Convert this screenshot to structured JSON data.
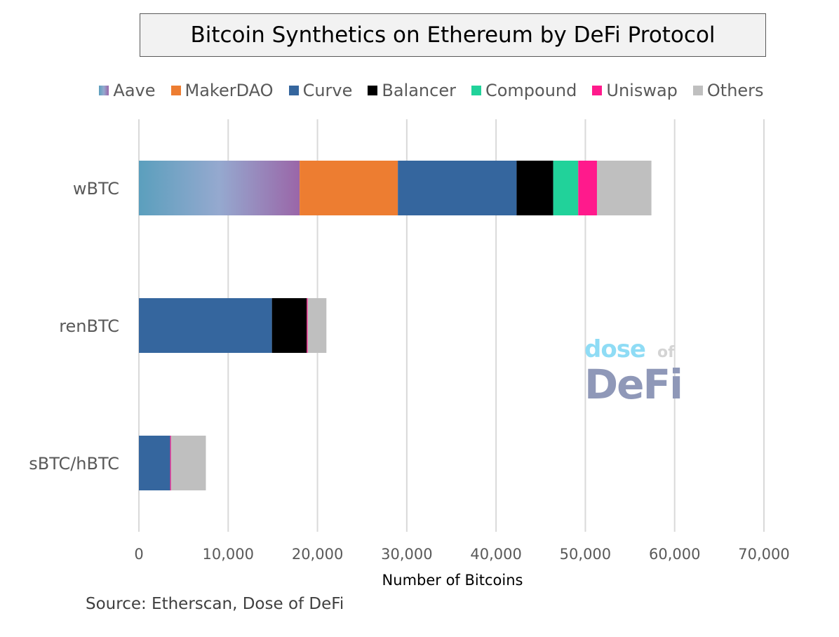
{
  "chart_data": {
    "type": "bar",
    "orientation": "horizontal",
    "stacked": true,
    "title": "Bitcoin Synthetics on Ethereum by DeFi Protocol",
    "xlabel": "Number of Bitcoins",
    "ylabel": "",
    "xlim": [
      0,
      70000
    ],
    "x_ticks": [
      0,
      10000,
      20000,
      30000,
      40000,
      50000,
      60000,
      70000
    ],
    "x_tick_labels": [
      "0",
      "10,000",
      "20,000",
      "30,000",
      "40,000",
      "50,000",
      "60,000",
      "70,000"
    ],
    "grid": "vertical",
    "legend_position": "top",
    "categories": [
      "wBTC",
      "renBTC",
      "sBTC/hBTC"
    ],
    "series": [
      {
        "name": "Aave",
        "color": "#6aa3c2",
        "values": [
          18000,
          0,
          0
        ]
      },
      {
        "name": "MakerDAO",
        "color": "#ed7d31",
        "values": [
          11000,
          0,
          0
        ]
      },
      {
        "name": "Curve",
        "color": "#35669e",
        "values": [
          13300,
          14900,
          3500
        ]
      },
      {
        "name": "Balancer",
        "color": "#000000",
        "values": [
          4100,
          3900,
          0
        ]
      },
      {
        "name": "Compound",
        "color": "#21d29a",
        "values": [
          2800,
          0,
          0
        ]
      },
      {
        "name": "Uniswap",
        "color": "#ff1a8c",
        "values": [
          2100,
          100,
          100
        ]
      },
      {
        "name": "Others",
        "color": "#bfbfbf",
        "values": [
          6100,
          2100,
          3900
        ]
      }
    ]
  },
  "source": "Source: Etherscan, Dose of DeFi",
  "watermark": {
    "line1": "dose",
    "line1_small": "of",
    "line2": "DeFi"
  }
}
